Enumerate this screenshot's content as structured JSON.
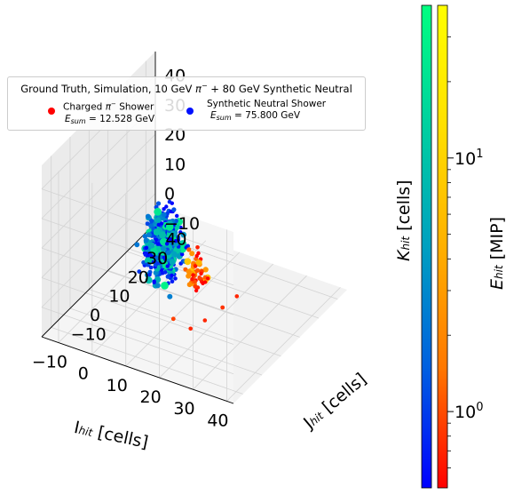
{
  "colors": {
    "pane": "#f2f2f2",
    "grid": "#d3d3d3",
    "charged": "#ff0000",
    "neutral": "#0010ff",
    "colormap_charged": [
      "#ff0000",
      "#ff7800",
      "#ffb000",
      "#ffe000",
      "#ffff00"
    ],
    "colormap_neutral": [
      "#0000ff",
      "#0060e0",
      "#00a0c0",
      "#00d0a0",
      "#00ff80"
    ]
  },
  "chart_data": {
    "type": "scatter",
    "projection": "3d",
    "legend": {
      "title": "Ground Truth, Simulation, 10 GeV π⁻ + 80 GeV Synthetic Neutral",
      "title_prefix": "Ground Truth, Simulation, 10 GeV ",
      "title_pi": "π",
      "title_sup": "−",
      "title_suffix": " + 80 GeV Synthetic Neutral",
      "placement": "upper-left",
      "entries": [
        {
          "label_main": "Charged ",
          "label_pi": "π",
          "label_sup": "−",
          "label_tail": " Shower",
          "sum_prefix": "E",
          "sum_sub": "sum",
          "sum_value": " = 12.528 GeV",
          "marker_color": "#ff0000"
        },
        {
          "label_main": "Synthetic Neutral Shower",
          "label_pi": "",
          "label_sup": "",
          "label_tail": "",
          "sum_prefix": "E",
          "sum_sub": "sum",
          "sum_value": " = 75.800 GeV",
          "marker_color": "#0010ff"
        }
      ]
    },
    "axes": {
      "x": {
        "label_main": "I",
        "label_sub": "hit",
        "label_unit": " [cells]",
        "lim": [
          -15,
          42
        ],
        "ticks": [
          "−10",
          "0",
          "10",
          "20",
          "30",
          "40"
        ],
        "tick_values": [
          -10,
          0,
          10,
          20,
          30,
          40
        ]
      },
      "y": {
        "label_main": "J",
        "label_sub": "hit",
        "label_unit": " [cells]",
        "lim": [
          -15,
          45
        ],
        "ticks": [
          "−10",
          "0",
          "10",
          "20",
          "30",
          "40"
        ],
        "tick_values": [
          -10,
          0,
          10,
          20,
          30,
          40
        ]
      },
      "z": {
        "label_main": "K",
        "label_sub": "hit",
        "label_unit": "  [cells]",
        "lim": [
          -10,
          48
        ],
        "ticks": [
          "−10",
          "0",
          "10",
          "20",
          "30",
          "40"
        ],
        "tick_values": [
          -10,
          0,
          10,
          20,
          30,
          40
        ]
      }
    },
    "colorbar": {
      "label_main": "E",
      "label_sub": "hit",
      "label_unit": " [MIP]",
      "scale": "log",
      "range": [
        0.5,
        40
      ],
      "major_ticks": [
        {
          "base": "10",
          "exp": "0",
          "value": 1
        },
        {
          "base": "10",
          "exp": "1",
          "value": 10
        }
      ]
    },
    "series": [
      {
        "name": "Charged π⁻ Shower",
        "cluster": {
          "center": [
            17,
            10,
            8
          ],
          "spread": [
            2.5,
            2.5,
            6
          ],
          "count": 60,
          "z_range": [
            -5,
            18
          ],
          "energy_range": [
            0.5,
            10
          ]
        },
        "points": [
          [
            20,
            9,
            -6,
            0.7
          ],
          [
            23,
            13,
            -3,
            0.8
          ],
          [
            25,
            17,
            -1,
            0.7
          ],
          [
            14,
            3,
            -4,
            0.9
          ],
          [
            18,
            5,
            -7,
            0.7
          ]
        ]
      },
      {
        "name": "Synthetic Neutral Shower",
        "cluster": {
          "center": [
            10,
            5,
            18
          ],
          "spread": [
            4,
            4.5,
            9
          ],
          "count": 460,
          "z_range": [
            -4,
            45
          ],
          "energy_range": [
            0.5,
            30
          ]
        },
        "points": []
      }
    ]
  }
}
